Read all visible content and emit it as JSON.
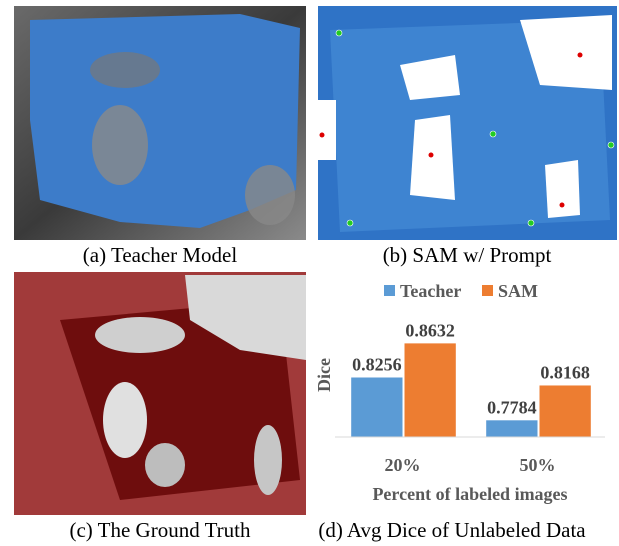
{
  "panels": [
    {
      "caption": "(a) Teacher Model"
    },
    {
      "caption": "(b) SAM w/ Prompt"
    },
    {
      "caption": "(c) The Ground Truth"
    },
    {
      "caption": "(d) Avg Dice of Unlabeled Data"
    }
  ],
  "chart_data": {
    "type": "bar",
    "categories": [
      "20%",
      "50%"
    ],
    "series": [
      {
        "name": "Teacher",
        "color": "#5b9bd5",
        "values": [
          0.8256,
          0.7784
        ]
      },
      {
        "name": "SAM",
        "color": "#ed7d31",
        "values": [
          0.8632,
          0.8168
        ]
      }
    ],
    "ylim": [
      0.76,
      0.9
    ],
    "y_label": "Dice",
    "x_label": "Percent of  labeled images",
    "legend": "top"
  }
}
